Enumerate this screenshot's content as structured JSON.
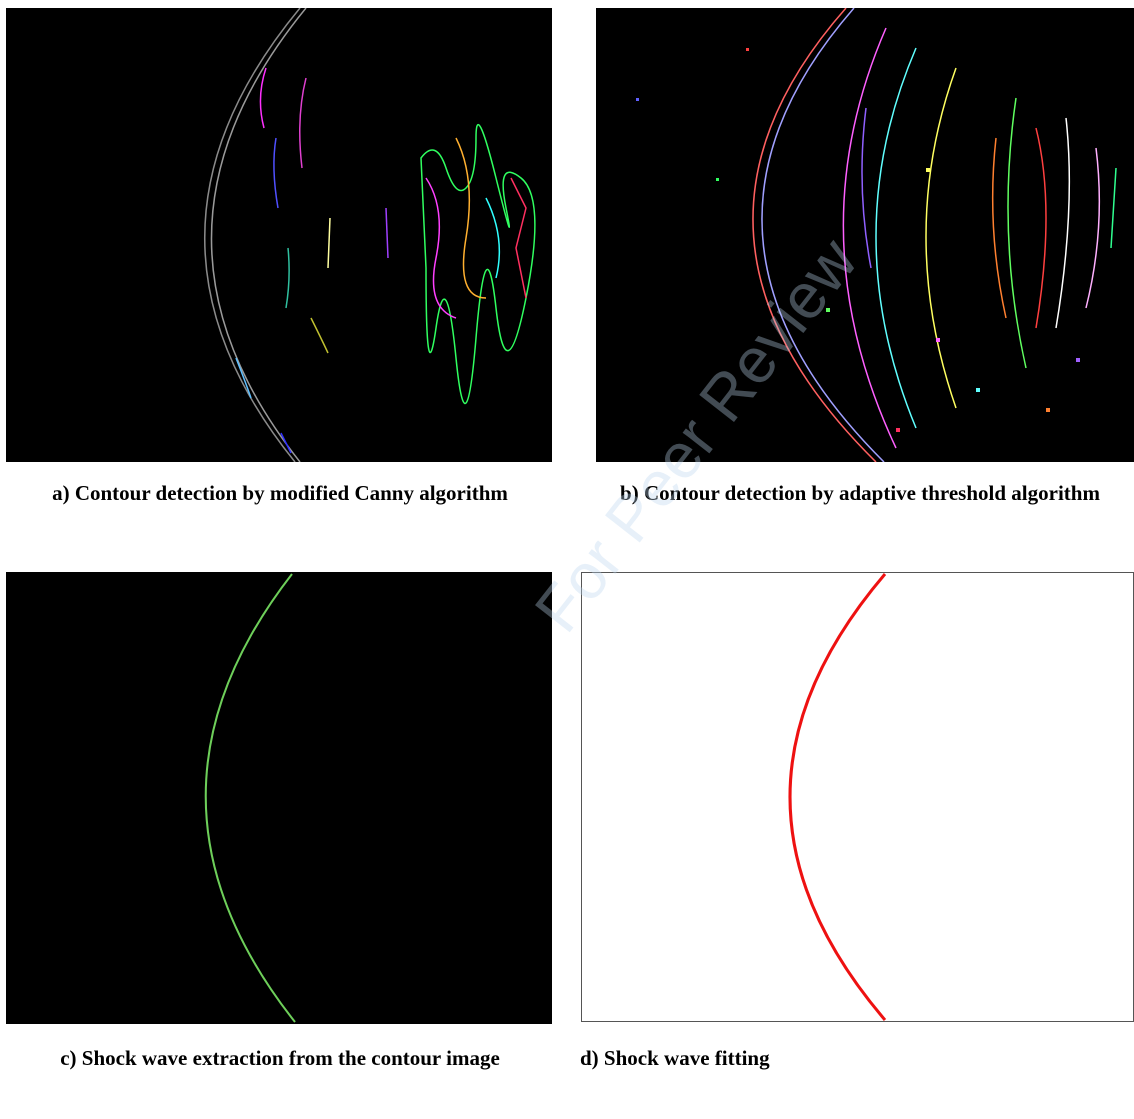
{
  "figure": {
    "panels": [
      {
        "caption": "a) Contour detection by modified Canny algorithm"
      },
      {
        "caption": "b) Contour detection by adaptive threshold algorithm"
      },
      {
        "caption": "c) Shock wave extraction from the contour image"
      },
      {
        "caption": "d) Shock wave fitting"
      }
    ],
    "watermark": "For Peer Review"
  }
}
